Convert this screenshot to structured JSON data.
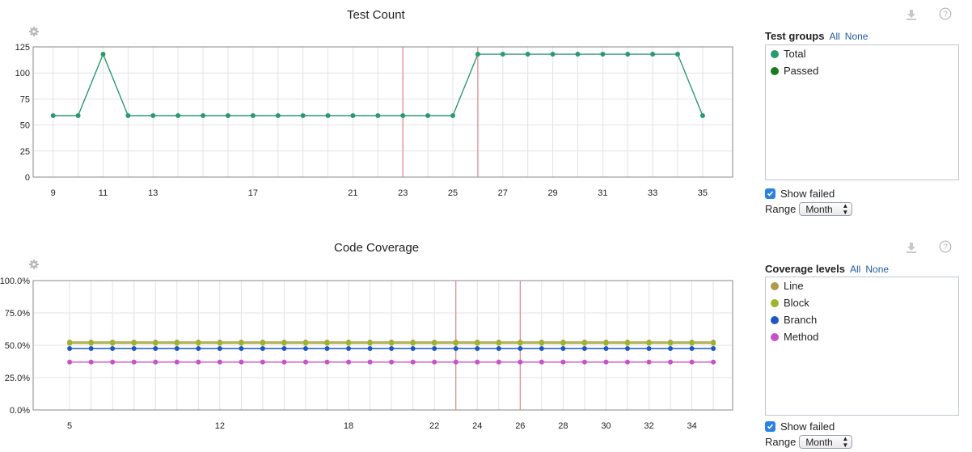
{
  "charts": [
    {
      "title": "Test Count",
      "legend_title": "Test groups",
      "legend_all": "All",
      "legend_none": "None",
      "legend_items": [
        {
          "label": "Total",
          "color": "#2a9a6e"
        },
        {
          "label": "Passed",
          "color": "#1a7a20"
        }
      ],
      "show_failed_label": "Show failed",
      "show_failed_checked": true,
      "range_label": "Range",
      "range_value": "Month"
    },
    {
      "title": "Code Coverage",
      "legend_title": "Coverage levels",
      "legend_all": "All",
      "legend_none": "None",
      "legend_items": [
        {
          "label": "Line",
          "color": "#b09a4a"
        },
        {
          "label": "Block",
          "color": "#9ab628"
        },
        {
          "label": "Branch",
          "color": "#1f56c0"
        },
        {
          "label": "Method",
          "color": "#c851c8"
        }
      ],
      "show_failed_label": "Show failed",
      "show_failed_checked": true,
      "range_label": "Range",
      "range_value": "Month"
    }
  ],
  "chart_data": [
    {
      "type": "line",
      "title": "Test Count",
      "xlim": [
        8.2,
        36.2
      ],
      "ylim": [
        0,
        125
      ],
      "xticks": [
        9,
        11,
        13,
        17,
        21,
        23,
        25,
        27,
        29,
        31,
        33,
        35
      ],
      "yticks": [
        "0",
        "25",
        "50",
        "75",
        "100",
        "125"
      ],
      "ytick_values": [
        0,
        25,
        50,
        75,
        100,
        125
      ],
      "grid": true,
      "failed_markers_x": [
        23,
        26
      ],
      "x": [
        9,
        10,
        11,
        12,
        13,
        14,
        15,
        16,
        17,
        18,
        19,
        20,
        21,
        22,
        23,
        24,
        25,
        26,
        27,
        28,
        29,
        30,
        31,
        32,
        33,
        34,
        35
      ],
      "series": [
        {
          "name": "Total",
          "color": "#2a9a6e",
          "values": [
            59,
            59,
            118,
            59,
            59,
            59,
            59,
            59,
            59,
            59,
            59,
            59,
            59,
            59,
            59,
            59,
            59,
            118,
            118,
            118,
            118,
            118,
            118,
            118,
            118,
            118,
            59
          ]
        }
      ]
    },
    {
      "type": "line",
      "title": "Code Coverage",
      "xlim": [
        3.3,
        35.9
      ],
      "ylim": [
        0,
        100
      ],
      "xticks": [
        5,
        12,
        18,
        22,
        24,
        26,
        28,
        30,
        32,
        34
      ],
      "yticks": [
        "0.0%",
        "25.0%",
        "50.0%",
        "75.0%",
        "100.0%"
      ],
      "ytick_values": [
        0,
        25,
        50,
        75,
        100
      ],
      "grid": true,
      "failed_markers_x": [
        23,
        26
      ],
      "x": [
        5,
        6,
        7,
        8,
        9,
        10,
        11,
        12,
        13,
        14,
        15,
        16,
        17,
        18,
        19,
        20,
        21,
        22,
        23,
        24,
        25,
        26,
        27,
        28,
        29,
        30,
        31,
        32,
        33,
        34,
        35
      ],
      "series": [
        {
          "name": "Line",
          "color": "#b09a4a",
          "values": [
            52.5,
            52.5,
            52.5,
            52.5,
            52.5,
            52.5,
            52.5,
            52.5,
            52.5,
            52.5,
            52.5,
            52.5,
            52.5,
            52.5,
            52.5,
            52.5,
            52.5,
            52.5,
            52.5,
            52.5,
            52.5,
            52.5,
            52.5,
            52.5,
            52.5,
            52.5,
            52.5,
            52.5,
            52.5,
            52.5,
            52.5
          ]
        },
        {
          "name": "Block",
          "color": "#9ab628",
          "values": [
            51.5,
            51.5,
            51.5,
            51.5,
            51.5,
            51.5,
            51.5,
            51.5,
            51.5,
            51.5,
            51.5,
            51.5,
            51.5,
            51.5,
            51.5,
            51.5,
            51.5,
            51.5,
            51.5,
            51.5,
            51.5,
            51.5,
            51.5,
            51.5,
            51.5,
            51.5,
            51.5,
            51.5,
            51.5,
            51.5,
            51.5
          ]
        },
        {
          "name": "Branch",
          "color": "#1f56c0",
          "values": [
            47.5,
            47.5,
            47.5,
            47.5,
            47.5,
            47.5,
            47.5,
            47.5,
            47.5,
            47.5,
            47.5,
            47.5,
            47.5,
            47.5,
            47.5,
            47.5,
            47.5,
            47.5,
            47.5,
            47.5,
            47.5,
            47.5,
            47.5,
            47.5,
            47.5,
            47.5,
            47.5,
            47.5,
            47.5,
            47.5,
            47.5
          ]
        },
        {
          "name": "Method",
          "color": "#c851c8",
          "values": [
            37,
            37,
            37,
            37,
            37,
            37,
            37,
            37,
            37,
            37,
            37,
            37,
            37,
            37,
            37,
            37,
            37,
            37,
            37,
            37,
            37,
            37,
            37,
            37,
            37,
            37,
            37,
            37,
            37,
            37,
            37
          ]
        }
      ]
    }
  ]
}
